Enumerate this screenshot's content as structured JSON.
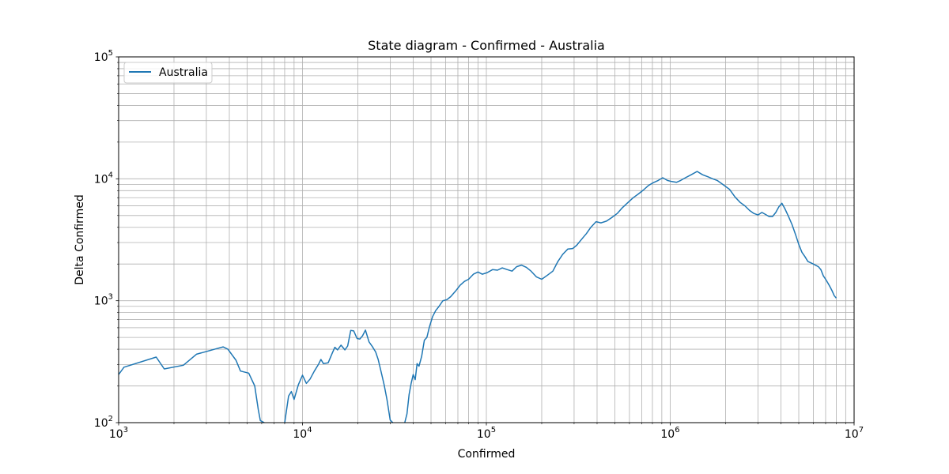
{
  "chart_data": {
    "type": "line",
    "title": "State diagram - Confirmed - Australia",
    "xlabel": "Confirmed",
    "ylabel": "Delta Confirmed",
    "xscale": "log",
    "yscale": "log",
    "xlim": [
      1000,
      10000000
    ],
    "ylim": [
      100,
      100000
    ],
    "grid": true,
    "legend_position": "top-left",
    "x_ticks": [
      {
        "base": "10",
        "exp": "3"
      },
      {
        "base": "10",
        "exp": "4"
      },
      {
        "base": "10",
        "exp": "5"
      },
      {
        "base": "10",
        "exp": "6"
      },
      {
        "base": "10",
        "exp": "7"
      }
    ],
    "y_ticks": [
      {
        "base": "10",
        "exp": "2"
      },
      {
        "base": "10",
        "exp": "3"
      },
      {
        "base": "10",
        "exp": "4"
      },
      {
        "base": "10",
        "exp": "5"
      }
    ],
    "series": [
      {
        "name": "Australia",
        "color": "#1f77b4",
        "segments": [
          [
            [
              1000,
              248
            ],
            [
              1070,
              285
            ],
            [
              1600,
              345
            ],
            [
              1770,
              276
            ],
            [
              2250,
              296
            ],
            [
              2650,
              364
            ],
            [
              3430,
              405
            ],
            [
              3700,
              418
            ],
            [
              3930,
              400
            ],
            [
              4350,
              325
            ],
            [
              4600,
              265
            ],
            [
              5100,
              255
            ],
            [
              5500,
              200
            ],
            [
              5750,
              128
            ],
            [
              5900,
              104
            ],
            [
              6200,
              100
            ]
          ],
          [
            [
              8000,
              100
            ],
            [
              8400,
              165
            ],
            [
              8700,
              180
            ],
            [
              9000,
              155
            ],
            [
              9500,
              205
            ],
            [
              10000,
              245
            ],
            [
              10500,
              210
            ],
            [
              11000,
              228
            ],
            [
              11600,
              265
            ],
            [
              12200,
              300
            ],
            [
              12600,
              330
            ],
            [
              13000,
              305
            ],
            [
              13800,
              310
            ],
            [
              14500,
              370
            ],
            [
              15000,
              415
            ],
            [
              15500,
              395
            ],
            [
              16200,
              432
            ],
            [
              17000,
              395
            ],
            [
              17600,
              425
            ],
            [
              18300,
              570
            ],
            [
              19000,
              565
            ],
            [
              19800,
              490
            ],
            [
              20500,
              485
            ],
            [
              21200,
              515
            ],
            [
              22000,
              575
            ],
            [
              23000,
              460
            ],
            [
              24000,
              420
            ],
            [
              25000,
              380
            ],
            [
              25800,
              330
            ],
            [
              26800,
              260
            ],
            [
              27800,
              205
            ],
            [
              28800,
              155
            ],
            [
              30000,
              105
            ],
            [
              31000,
              100
            ]
          ],
          [
            [
              36000,
              100
            ],
            [
              37000,
              118
            ],
            [
              38000,
              170
            ],
            [
              39000,
              210
            ],
            [
              40000,
              248
            ],
            [
              41000,
              225
            ],
            [
              42000,
              305
            ],
            [
              43000,
              290
            ],
            [
              44500,
              350
            ],
            [
              46000,
              475
            ],
            [
              47500,
              500
            ],
            [
              49000,
              610
            ],
            [
              51000,
              740
            ],
            [
              53000,
              830
            ],
            [
              55000,
              890
            ],
            [
              58000,
              1000
            ],
            [
              61000,
              1020
            ],
            [
              64000,
              1080
            ],
            [
              68000,
              1200
            ],
            [
              72000,
              1340
            ],
            [
              76000,
              1440
            ],
            [
              80000,
              1500
            ],
            [
              85000,
              1650
            ],
            [
              90000,
              1720
            ],
            [
              95000,
              1650
            ],
            [
              101000,
              1700
            ],
            [
              108000,
              1800
            ],
            [
              115000,
              1780
            ],
            [
              122000,
              1860
            ],
            [
              130000,
              1800
            ],
            [
              138000,
              1750
            ],
            [
              146000,
              1900
            ],
            [
              155000,
              1960
            ],
            [
              165000,
              1880
            ],
            [
              175000,
              1750
            ],
            [
              187000,
              1570
            ],
            [
              200000,
              1500
            ],
            [
              215000,
              1620
            ],
            [
              230000,
              1750
            ],
            [
              245000,
              2100
            ],
            [
              260000,
              2400
            ],
            [
              277000,
              2650
            ],
            [
              295000,
              2680
            ],
            [
              310000,
              2850
            ],
            [
              330000,
              3200
            ],
            [
              350000,
              3550
            ],
            [
              370000,
              4000
            ],
            [
              395000,
              4450
            ],
            [
              420000,
              4350
            ],
            [
              450000,
              4500
            ],
            [
              480000,
              4800
            ],
            [
              515000,
              5200
            ],
            [
              550000,
              5800
            ],
            [
              590000,
              6400
            ],
            [
              630000,
              7000
            ],
            [
              670000,
              7500
            ],
            [
              715000,
              8100
            ],
            [
              760000,
              8800
            ],
            [
              810000,
              9300
            ],
            [
              860000,
              9700
            ],
            [
              910000,
              10200
            ],
            [
              965000,
              9700
            ],
            [
              1020000,
              9500
            ],
            [
              1080000,
              9350
            ],
            [
              1140000,
              9700
            ],
            [
              1210000,
              10200
            ],
            [
              1300000,
              10800
            ],
            [
              1400000,
              11500
            ],
            [
              1500000,
              10800
            ],
            [
              1600000,
              10400
            ],
            [
              1700000,
              10000
            ],
            [
              1800000,
              9700
            ],
            [
              1950000,
              8900
            ],
            [
              2100000,
              8200
            ],
            [
              2250000,
              7100
            ],
            [
              2400000,
              6400
            ],
            [
              2550000,
              6000
            ],
            [
              2700000,
              5500
            ],
            [
              2850000,
              5200
            ],
            [
              3000000,
              5050
            ],
            [
              3150000,
              5300
            ],
            [
              3300000,
              5100
            ],
            [
              3450000,
              4900
            ],
            [
              3600000,
              4900
            ],
            [
              3750000,
              5300
            ],
            [
              3900000,
              5900
            ],
            [
              4050000,
              6300
            ],
            [
              4200000,
              5700
            ],
            [
              4400000,
              4900
            ],
            [
              4600000,
              4200
            ],
            [
              4800000,
              3500
            ],
            [
              5000000,
              2900
            ],
            [
              5200000,
              2500
            ],
            [
              5400000,
              2300
            ],
            [
              5600000,
              2100
            ],
            [
              5800000,
              2050
            ],
            [
              6000000,
              2000
            ],
            [
              6200000,
              1950
            ],
            [
              6400000,
              1900
            ],
            [
              6600000,
              1800
            ],
            [
              6800000,
              1600
            ],
            [
              7000000,
              1500
            ],
            [
              7200000,
              1400
            ],
            [
              7400000,
              1300
            ],
            [
              7600000,
              1200
            ],
            [
              7800000,
              1100
            ],
            [
              8000000,
              1050
            ]
          ]
        ]
      }
    ]
  }
}
